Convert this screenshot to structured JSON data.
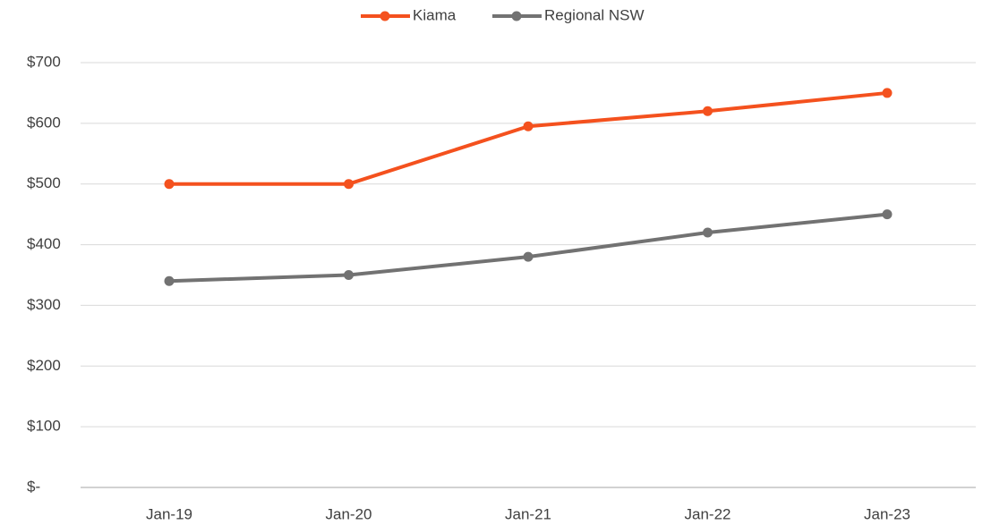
{
  "chart_data": {
    "type": "line",
    "categories": [
      "Jan-19",
      "Jan-20",
      "Jan-21",
      "Jan-22",
      "Jan-23"
    ],
    "series": [
      {
        "name": "Kiama",
        "color": "#f4511e",
        "values": [
          500,
          500,
          595,
          620,
          650
        ]
      },
      {
        "name": "Regional NSW",
        "color": "#727272",
        "values": [
          340,
          350,
          380,
          420,
          450
        ]
      }
    ],
    "ylim": [
      0,
      700
    ],
    "yticks": [
      {
        "value": 0,
        "label": "$-"
      },
      {
        "value": 100,
        "label": "$100"
      },
      {
        "value": 200,
        "label": "$200"
      },
      {
        "value": 300,
        "label": "$300"
      },
      {
        "value": 400,
        "label": "$400"
      },
      {
        "value": 500,
        "label": "$500"
      },
      {
        "value": 600,
        "label": "$600"
      },
      {
        "value": 700,
        "label": "$700"
      }
    ],
    "grid": true,
    "legend": "top"
  }
}
